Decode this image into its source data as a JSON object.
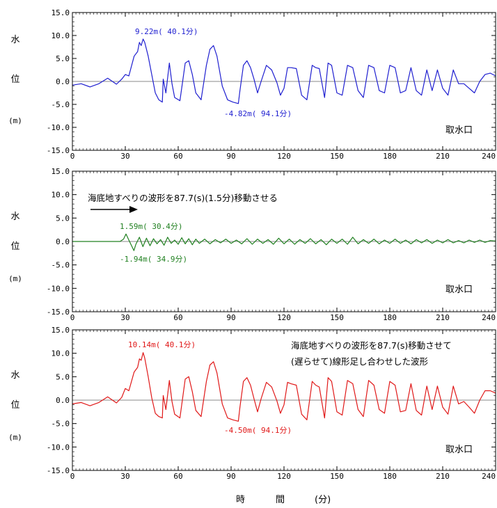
{
  "chart_data": [
    {
      "type": "line",
      "ylabel_chars": [
        "水",
        "位",
        "(m)"
      ],
      "ylim": [
        -15,
        15
      ],
      "yticks": [
        "15.0",
        "10.0",
        "5.0",
        "0.0",
        "-5.0",
        "-10.0",
        "-15.0"
      ],
      "xlim": [
        0,
        240
      ],
      "xticks": [
        "0",
        "30",
        "60",
        "90",
        "120",
        "150",
        "180",
        "210",
        "240"
      ],
      "location_label": "取水口",
      "series": [
        {
          "color": "#1f1fd0",
          "x": [
            0,
            5,
            10,
            15,
            20,
            25,
            28,
            30,
            32,
            35,
            37,
            38,
            39,
            40.1,
            41,
            43,
            45,
            47,
            49,
            51,
            51.5,
            53,
            55,
            56.5,
            58,
            61,
            64,
            66,
            68,
            70,
            73,
            76,
            78,
            80,
            82,
            85,
            88,
            91,
            94.1,
            95,
            97,
            99,
            101,
            103,
            105,
            107,
            110,
            113,
            116,
            118,
            120,
            122,
            124,
            127,
            130,
            133,
            136,
            138,
            140,
            143,
            145,
            147,
            150,
            153,
            156,
            159,
            162,
            165,
            168,
            171,
            174,
            177,
            180,
            183,
            186,
            189,
            192,
            195,
            198,
            201,
            204,
            207,
            210,
            213,
            216,
            219,
            222,
            225,
            228,
            231,
            234,
            237,
            240
          ],
          "values": [
            -0.8,
            -0.5,
            -1.2,
            -0.5,
            0.7,
            -0.6,
            0.5,
            1.5,
            1.2,
            5.5,
            6.5,
            8.5,
            7.8,
            9.22,
            8.5,
            5.5,
            1.5,
            -2.5,
            -4.0,
            -4.5,
            0.5,
            -2.5,
            4.0,
            -0.5,
            -3.5,
            -4.2,
            4.0,
            4.5,
            1.5,
            -2.5,
            -4.0,
            3.5,
            7.0,
            7.8,
            5.5,
            -1.0,
            -4.0,
            -4.5,
            -4.82,
            -2.0,
            3.5,
            4.5,
            3.0,
            0.5,
            -2.5,
            0.0,
            3.5,
            2.5,
            -0.3,
            -3.0,
            -1.5,
            3.0,
            3.0,
            2.8,
            -3.0,
            -4.0,
            3.5,
            3.0,
            2.8,
            -3.5,
            4.0,
            3.5,
            -2.5,
            -3.0,
            3.5,
            3.0,
            -2.0,
            -3.5,
            3.5,
            3.0,
            -2.0,
            -2.5,
            3.5,
            3.0,
            -2.5,
            -2.0,
            3.0,
            -2.0,
            -3.0,
            2.5,
            -2.0,
            2.5,
            -1.5,
            -3.0,
            2.5,
            -0.5,
            -0.5,
            -1.5,
            -2.5,
            0.0,
            1.5,
            1.8,
            1.2
          ],
          "annotations": [
            {
              "text": "9.22m( 40.1分)"
            },
            {
              "text": "-4.82m( 94.1分)"
            }
          ]
        }
      ]
    },
    {
      "type": "line",
      "ylabel_chars": [
        "水",
        "位",
        "(m)"
      ],
      "ylim": [
        -15,
        15
      ],
      "yticks": [
        "15.0",
        "10.0",
        "5.0",
        "0.0",
        "-5.0",
        "-10.0",
        "-15.0"
      ],
      "xlim": [
        0,
        240
      ],
      "xticks": [
        "0",
        "30",
        "60",
        "90",
        "120",
        "150",
        "180",
        "210",
        "240"
      ],
      "location_label": "取水口",
      "note_lines": [
        "海底地すべりの波形を87.7(s)(1.5分)移動させる"
      ],
      "series": [
        {
          "color": "#208020",
          "x": [
            0,
            27,
            29,
            30.4,
            32,
            34.9,
            36,
            38,
            40,
            42,
            44,
            46,
            48,
            50,
            52,
            54,
            56,
            58,
            60,
            62,
            64,
            66,
            68,
            70,
            72,
            75,
            78,
            81,
            84,
            87,
            90,
            93,
            96,
            99,
            102,
            105,
            108,
            111,
            114,
            117,
            120,
            123,
            126,
            129,
            132,
            135,
            138,
            141,
            144,
            147,
            150,
            153,
            156,
            159,
            162,
            165,
            168,
            171,
            174,
            177,
            180,
            183,
            186,
            189,
            192,
            195,
            198,
            201,
            204,
            207,
            210,
            213,
            216,
            219,
            222,
            225,
            228,
            231,
            234,
            237,
            240
          ],
          "values": [
            0,
            0,
            0.5,
            1.59,
            0.3,
            -1.94,
            -0.6,
            0.9,
            -1.1,
            0.7,
            -0.9,
            0.6,
            -0.5,
            0.4,
            -0.8,
            0.9,
            -0.4,
            0.3,
            -0.6,
            0.8,
            -0.5,
            0.6,
            -0.7,
            0.5,
            -0.4,
            0.5,
            -0.5,
            0.4,
            -0.3,
            0.5,
            -0.4,
            0.3,
            -0.5,
            0.6,
            -0.6,
            0.5,
            -0.4,
            0.4,
            -0.6,
            0.7,
            -0.5,
            0.5,
            -0.6,
            0.4,
            -0.4,
            0.6,
            -0.5,
            0.4,
            -0.7,
            0.5,
            -0.4,
            0.5,
            -0.6,
            0.9,
            -0.5,
            0.4,
            -0.4,
            0.5,
            -0.5,
            0.3,
            -0.4,
            0.5,
            -0.4,
            0.3,
            -0.5,
            0.4,
            -0.3,
            0.4,
            -0.4,
            0.3,
            -0.3,
            0.4,
            -0.3,
            0.2,
            -0.3,
            0.3,
            -0.2,
            0.3,
            -0.2,
            0.2,
            0.1
          ],
          "annotations": [
            {
              "text": "1.59m( 30.4分)"
            },
            {
              "text": "-1.94m( 34.9分)"
            }
          ]
        }
      ]
    },
    {
      "type": "line",
      "ylabel_chars": [
        "水",
        "位",
        "(m)"
      ],
      "ylim": [
        -15,
        15
      ],
      "yticks": [
        "15.0",
        "10.0",
        "5.0",
        "0.0",
        "-5.0",
        "-10.0",
        "-15.0"
      ],
      "xlim": [
        0,
        240
      ],
      "xticks": [
        "0",
        "30",
        "60",
        "90",
        "120",
        "150",
        "180",
        "210",
        "240"
      ],
      "location_label": "取水口",
      "note_lines": [
        "海底地すべりの波形を87.7(s)移動させて",
        "(遅らせて)線形足し合わせした波形"
      ],
      "series": [
        {
          "color": "#e01818",
          "x": [
            0,
            5,
            10,
            15,
            20,
            25,
            28,
            30,
            32,
            35,
            37,
            38,
            39,
            40.1,
            41,
            43,
            45,
            47,
            49,
            51,
            51.5,
            53,
            55,
            56.5,
            58,
            61,
            64,
            66,
            68,
            70,
            73,
            76,
            78,
            80,
            82,
            85,
            88,
            91,
            94.1,
            95,
            97,
            99,
            101,
            103,
            105,
            107,
            110,
            113,
            116,
            118,
            120,
            122,
            124,
            127,
            130,
            133,
            136,
            138,
            140,
            143,
            145,
            147,
            150,
            153,
            156,
            159,
            162,
            165,
            168,
            171,
            174,
            177,
            180,
            183,
            186,
            189,
            192,
            195,
            198,
            201,
            204,
            207,
            210,
            213,
            216,
            219,
            222,
            225,
            228,
            231,
            234,
            237,
            240
          ],
          "values": [
            -0.8,
            -0.5,
            -1.2,
            -0.5,
            0.7,
            -0.6,
            0.6,
            2.5,
            2.0,
            6.0,
            7.0,
            8.8,
            8.5,
            10.14,
            9.0,
            5.0,
            0.5,
            -2.8,
            -3.5,
            -3.8,
            1.0,
            -2.0,
            4.2,
            -0.3,
            -3.0,
            -3.8,
            4.5,
            5.0,
            1.8,
            -2.2,
            -3.5,
            4.0,
            7.5,
            8.2,
            5.8,
            -0.8,
            -3.8,
            -4.2,
            -4.5,
            -1.5,
            4.0,
            4.8,
            3.2,
            0.3,
            -2.5,
            0.3,
            3.8,
            2.8,
            -0.2,
            -2.8,
            -1.0,
            3.8,
            3.5,
            3.2,
            -3.0,
            -4.2,
            4.0,
            3.2,
            2.8,
            -3.8,
            4.8,
            4.0,
            -2.5,
            -3.2,
            4.2,
            3.5,
            -2.0,
            -3.5,
            4.2,
            3.2,
            -2.0,
            -2.8,
            4.0,
            3.2,
            -2.5,
            -2.2,
            3.5,
            -2.2,
            -3.2,
            3.0,
            -2.0,
            3.0,
            -1.5,
            -3.0,
            3.0,
            -0.8,
            -0.3,
            -1.5,
            -2.8,
            0.0,
            2.0,
            2.0,
            1.5
          ],
          "annotations": [
            {
              "text": "10.14m( 40.1分)"
            },
            {
              "text": "-4.50m( 94.1分)"
            }
          ]
        }
      ]
    }
  ],
  "xlabel": {
    "a": "時",
    "b": "間",
    "c": "(分)"
  }
}
